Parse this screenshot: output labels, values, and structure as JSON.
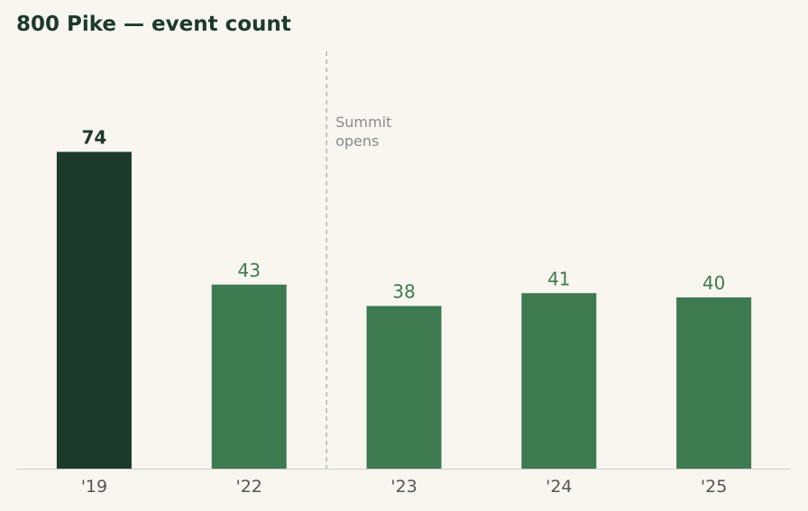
{
  "chart_data": {
    "type": "bar",
    "title": "800 Pike — event count",
    "xlabel": "",
    "ylabel": "",
    "categories": [
      "'19",
      "'22",
      "'23",
      "'24",
      "'25"
    ],
    "values": [
      74,
      43,
      38,
      41,
      40
    ],
    "ylim": [
      0,
      97
    ],
    "grid": false,
    "highlight_index": 0,
    "colors": {
      "highlight": "#1c3a2b",
      "bar": "#3d7a50",
      "baseline": "#cccccc",
      "annotation_line": "#b5b5b5"
    },
    "annotations": [
      {
        "after_category_index": 1,
        "lines": [
          "Summit",
          "opens"
        ]
      }
    ]
  }
}
